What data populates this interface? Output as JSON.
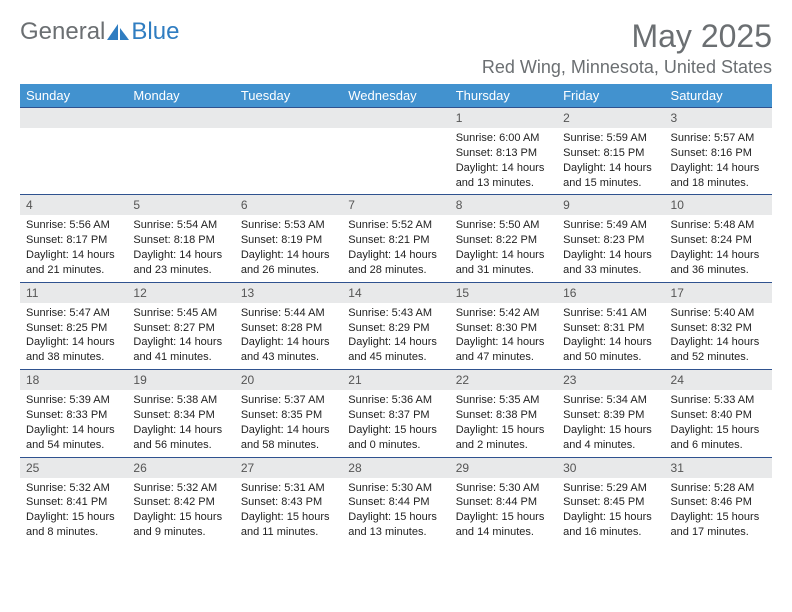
{
  "logo": {
    "general": "General",
    "blue": "Blue"
  },
  "title": "May 2025",
  "location": "Red Wing, Minnesota, United States",
  "day_headers": [
    "Sunday",
    "Monday",
    "Tuesday",
    "Wednesday",
    "Thursday",
    "Friday",
    "Saturday"
  ],
  "colors": {
    "header_bg": "#4292cf",
    "header_fg": "#ffffff",
    "daynum_bg": "#e8e9ea",
    "border": "#2f528f",
    "text_gray": "#6b6f72",
    "logo_blue": "#2f7dc1"
  },
  "weeks": [
    [
      {
        "num": "",
        "lines": []
      },
      {
        "num": "",
        "lines": []
      },
      {
        "num": "",
        "lines": []
      },
      {
        "num": "",
        "lines": []
      },
      {
        "num": "1",
        "lines": [
          "Sunrise: 6:00 AM",
          "Sunset: 8:13 PM",
          "Daylight: 14 hours",
          "and 13 minutes."
        ]
      },
      {
        "num": "2",
        "lines": [
          "Sunrise: 5:59 AM",
          "Sunset: 8:15 PM",
          "Daylight: 14 hours",
          "and 15 minutes."
        ]
      },
      {
        "num": "3",
        "lines": [
          "Sunrise: 5:57 AM",
          "Sunset: 8:16 PM",
          "Daylight: 14 hours",
          "and 18 minutes."
        ]
      }
    ],
    [
      {
        "num": "4",
        "lines": [
          "Sunrise: 5:56 AM",
          "Sunset: 8:17 PM",
          "Daylight: 14 hours",
          "and 21 minutes."
        ]
      },
      {
        "num": "5",
        "lines": [
          "Sunrise: 5:54 AM",
          "Sunset: 8:18 PM",
          "Daylight: 14 hours",
          "and 23 minutes."
        ]
      },
      {
        "num": "6",
        "lines": [
          "Sunrise: 5:53 AM",
          "Sunset: 8:19 PM",
          "Daylight: 14 hours",
          "and 26 minutes."
        ]
      },
      {
        "num": "7",
        "lines": [
          "Sunrise: 5:52 AM",
          "Sunset: 8:21 PM",
          "Daylight: 14 hours",
          "and 28 minutes."
        ]
      },
      {
        "num": "8",
        "lines": [
          "Sunrise: 5:50 AM",
          "Sunset: 8:22 PM",
          "Daylight: 14 hours",
          "and 31 minutes."
        ]
      },
      {
        "num": "9",
        "lines": [
          "Sunrise: 5:49 AM",
          "Sunset: 8:23 PM",
          "Daylight: 14 hours",
          "and 33 minutes."
        ]
      },
      {
        "num": "10",
        "lines": [
          "Sunrise: 5:48 AM",
          "Sunset: 8:24 PM",
          "Daylight: 14 hours",
          "and 36 minutes."
        ]
      }
    ],
    [
      {
        "num": "11",
        "lines": [
          "Sunrise: 5:47 AM",
          "Sunset: 8:25 PM",
          "Daylight: 14 hours",
          "and 38 minutes."
        ]
      },
      {
        "num": "12",
        "lines": [
          "Sunrise: 5:45 AM",
          "Sunset: 8:27 PM",
          "Daylight: 14 hours",
          "and 41 minutes."
        ]
      },
      {
        "num": "13",
        "lines": [
          "Sunrise: 5:44 AM",
          "Sunset: 8:28 PM",
          "Daylight: 14 hours",
          "and 43 minutes."
        ]
      },
      {
        "num": "14",
        "lines": [
          "Sunrise: 5:43 AM",
          "Sunset: 8:29 PM",
          "Daylight: 14 hours",
          "and 45 minutes."
        ]
      },
      {
        "num": "15",
        "lines": [
          "Sunrise: 5:42 AM",
          "Sunset: 8:30 PM",
          "Daylight: 14 hours",
          "and 47 minutes."
        ]
      },
      {
        "num": "16",
        "lines": [
          "Sunrise: 5:41 AM",
          "Sunset: 8:31 PM",
          "Daylight: 14 hours",
          "and 50 minutes."
        ]
      },
      {
        "num": "17",
        "lines": [
          "Sunrise: 5:40 AM",
          "Sunset: 8:32 PM",
          "Daylight: 14 hours",
          "and 52 minutes."
        ]
      }
    ],
    [
      {
        "num": "18",
        "lines": [
          "Sunrise: 5:39 AM",
          "Sunset: 8:33 PM",
          "Daylight: 14 hours",
          "and 54 minutes."
        ]
      },
      {
        "num": "19",
        "lines": [
          "Sunrise: 5:38 AM",
          "Sunset: 8:34 PM",
          "Daylight: 14 hours",
          "and 56 minutes."
        ]
      },
      {
        "num": "20",
        "lines": [
          "Sunrise: 5:37 AM",
          "Sunset: 8:35 PM",
          "Daylight: 14 hours",
          "and 58 minutes."
        ]
      },
      {
        "num": "21",
        "lines": [
          "Sunrise: 5:36 AM",
          "Sunset: 8:37 PM",
          "Daylight: 15 hours",
          "and 0 minutes."
        ]
      },
      {
        "num": "22",
        "lines": [
          "Sunrise: 5:35 AM",
          "Sunset: 8:38 PM",
          "Daylight: 15 hours",
          "and 2 minutes."
        ]
      },
      {
        "num": "23",
        "lines": [
          "Sunrise: 5:34 AM",
          "Sunset: 8:39 PM",
          "Daylight: 15 hours",
          "and 4 minutes."
        ]
      },
      {
        "num": "24",
        "lines": [
          "Sunrise: 5:33 AM",
          "Sunset: 8:40 PM",
          "Daylight: 15 hours",
          "and 6 minutes."
        ]
      }
    ],
    [
      {
        "num": "25",
        "lines": [
          "Sunrise: 5:32 AM",
          "Sunset: 8:41 PM",
          "Daylight: 15 hours",
          "and 8 minutes."
        ]
      },
      {
        "num": "26",
        "lines": [
          "Sunrise: 5:32 AM",
          "Sunset: 8:42 PM",
          "Daylight: 15 hours",
          "and 9 minutes."
        ]
      },
      {
        "num": "27",
        "lines": [
          "Sunrise: 5:31 AM",
          "Sunset: 8:43 PM",
          "Daylight: 15 hours",
          "and 11 minutes."
        ]
      },
      {
        "num": "28",
        "lines": [
          "Sunrise: 5:30 AM",
          "Sunset: 8:44 PM",
          "Daylight: 15 hours",
          "and 13 minutes."
        ]
      },
      {
        "num": "29",
        "lines": [
          "Sunrise: 5:30 AM",
          "Sunset: 8:44 PM",
          "Daylight: 15 hours",
          "and 14 minutes."
        ]
      },
      {
        "num": "30",
        "lines": [
          "Sunrise: 5:29 AM",
          "Sunset: 8:45 PM",
          "Daylight: 15 hours",
          "and 16 minutes."
        ]
      },
      {
        "num": "31",
        "lines": [
          "Sunrise: 5:28 AM",
          "Sunset: 8:46 PM",
          "Daylight: 15 hours",
          "and 17 minutes."
        ]
      }
    ]
  ]
}
